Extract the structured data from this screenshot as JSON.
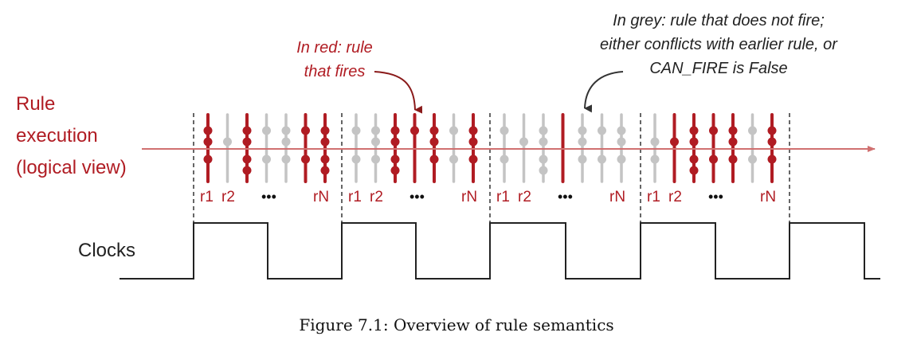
{
  "labels": {
    "rule_execution": [
      "Rule",
      "execution",
      "(logical view)"
    ],
    "clocks": "Clocks",
    "ellipsis": "•••",
    "r1": "r1",
    "r2": "r2",
    "rN": "rN"
  },
  "annotations": {
    "red": [
      "In red: rule",
      "that fires"
    ],
    "grey": [
      "In grey: rule that does not fire;",
      "either conflicts with earlier rule, or",
      "CAN_FIRE is False"
    ]
  },
  "caption": "Figure 7.1: Overview of rule semantics",
  "colors": {
    "fires": "#b01c23",
    "not_fires": "#c4c4c4",
    "axis": "#d07070",
    "text": "#222222"
  },
  "cycles": [
    {
      "rules": [
        {
          "fires": true,
          "dots": [
            0,
            1,
            2
          ]
        },
        {
          "fires": false,
          "dots": [
            1
          ]
        },
        {
          "fires": true,
          "dots": [
            0,
            1,
            2,
            3
          ]
        },
        {
          "fires": false,
          "dots": [
            0,
            2
          ]
        },
        {
          "fires": false,
          "dots": [
            0,
            1,
            2
          ]
        },
        {
          "fires": true,
          "dots": [
            0,
            2
          ]
        },
        {
          "fires": true,
          "dots": [
            0,
            1,
            2,
            3
          ]
        }
      ]
    },
    {
      "rules": [
        {
          "fires": false,
          "dots": [
            0,
            2
          ]
        },
        {
          "fires": false,
          "dots": [
            0,
            1,
            2
          ]
        },
        {
          "fires": true,
          "dots": [
            0,
            1,
            2,
            3
          ]
        },
        {
          "fires": true,
          "dots": [
            0
          ]
        },
        {
          "fires": true,
          "dots": [
            0,
            1,
            2
          ]
        },
        {
          "fires": false,
          "dots": [
            0,
            2
          ]
        },
        {
          "fires": true,
          "dots": [
            0,
            1,
            2
          ]
        }
      ]
    },
    {
      "rules": [
        {
          "fires": false,
          "dots": [
            0,
            2
          ]
        },
        {
          "fires": false,
          "dots": [
            1
          ]
        },
        {
          "fires": false,
          "dots": [
            0,
            1,
            2,
            3
          ]
        },
        {
          "fires": true,
          "dots": []
        },
        {
          "fires": false,
          "dots": [
            0,
            1,
            2
          ]
        },
        {
          "fires": false,
          "dots": [
            0,
            2
          ]
        },
        {
          "fires": false,
          "dots": [
            0,
            1,
            2
          ]
        }
      ]
    },
    {
      "rules": [
        {
          "fires": false,
          "dots": [
            1,
            2
          ]
        },
        {
          "fires": true,
          "dots": [
            1
          ]
        },
        {
          "fires": true,
          "dots": [
            0,
            1,
            2,
            3
          ]
        },
        {
          "fires": true,
          "dots": [
            0,
            2
          ]
        },
        {
          "fires": true,
          "dots": [
            0,
            1,
            2
          ]
        },
        {
          "fires": false,
          "dots": [
            0,
            2
          ]
        },
        {
          "fires": true,
          "dots": [
            0,
            1,
            2
          ]
        }
      ]
    }
  ]
}
